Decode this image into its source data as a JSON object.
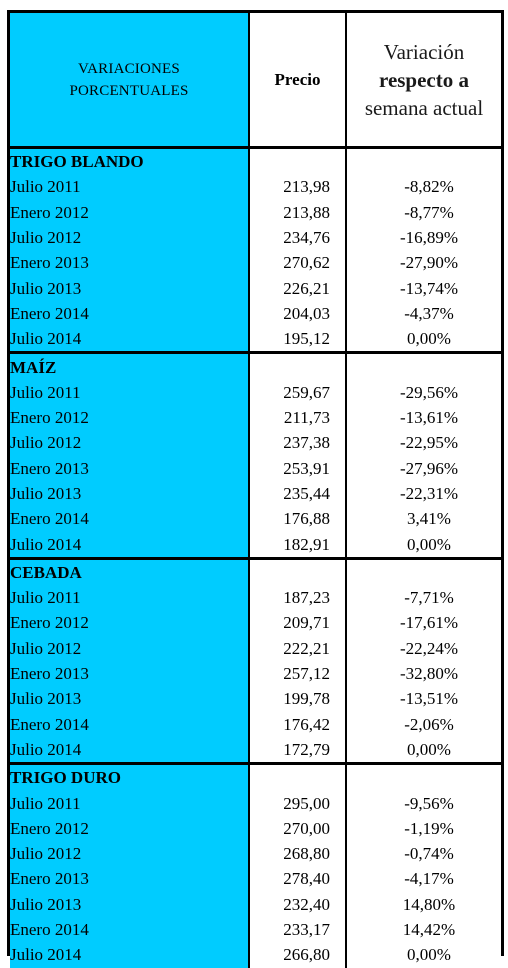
{
  "header": {
    "col1": [
      "VARIACIONES",
      "PORCENTUALES"
    ],
    "col2": "Precio",
    "col3_lines": [
      "Variación",
      "respecto a",
      "semana actual"
    ]
  },
  "groups": [
    {
      "name": "TRIGO BLANDO",
      "rows": [
        {
          "period": "Julio 2011",
          "price": "213,98",
          "variation": "-8,82%"
        },
        {
          "period": "Enero 2012",
          "price": "213,88",
          "variation": "-8,77%"
        },
        {
          "period": "Julio 2012",
          "price": "234,76",
          "variation": "-16,89%"
        },
        {
          "period": "Enero 2013",
          "price": "270,62",
          "variation": "-27,90%"
        },
        {
          "period": "Julio 2013",
          "price": "226,21",
          "variation": "-13,74%"
        },
        {
          "period": "Enero 2014",
          "price": "204,03",
          "variation": "-4,37%"
        },
        {
          "period": "Julio 2014",
          "price": "195,12",
          "variation": "0,00%"
        }
      ]
    },
    {
      "name": "MAÍZ",
      "rows": [
        {
          "period": "Julio 2011",
          "price": "259,67",
          "variation": "-29,56%"
        },
        {
          "period": "Enero 2012",
          "price": "211,73",
          "variation": "-13,61%"
        },
        {
          "period": "Julio 2012",
          "price": "237,38",
          "variation": "-22,95%"
        },
        {
          "period": "Enero 2013",
          "price": "253,91",
          "variation": "-27,96%"
        },
        {
          "period": "Julio 2013",
          "price": "235,44",
          "variation": "-22,31%"
        },
        {
          "period": "Enero 2014",
          "price": "176,88",
          "variation": "3,41%"
        },
        {
          "period": "Julio 2014",
          "price": "182,91",
          "variation": "0,00%"
        }
      ]
    },
    {
      "name": "CEBADA",
      "rows": [
        {
          "period": "Julio 2011",
          "price": "187,23",
          "variation": "-7,71%"
        },
        {
          "period": "Enero 2012",
          "price": "209,71",
          "variation": "-17,61%"
        },
        {
          "period": "Julio 2012",
          "price": "222,21",
          "variation": "-22,24%"
        },
        {
          "period": "Enero 2013",
          "price": "257,12",
          "variation": "-32,80%"
        },
        {
          "period": "Julio 2013",
          "price": "199,78",
          "variation": "-13,51%"
        },
        {
          "period": "Enero 2014",
          "price": "176,42",
          "variation": "-2,06%"
        },
        {
          "period": "Julio 2014",
          "price": "172,79",
          "variation": "0,00%"
        }
      ]
    },
    {
      "name": "TRIGO DURO",
      "rows": [
        {
          "period": "Julio 2011",
          "price": "295,00",
          "variation": "-9,56%"
        },
        {
          "period": "Enero 2012",
          "price": "270,00",
          "variation": "-1,19%"
        },
        {
          "period": "Julio 2012",
          "price": "268,80",
          "variation": "-0,74%"
        },
        {
          "period": "Enero 2013",
          "price": "278,40",
          "variation": "-4,17%"
        },
        {
          "period": "Julio 2013",
          "price": "232,40",
          "variation": "14,80%"
        },
        {
          "period": "Enero 2014",
          "price": "233,17",
          "variation": "14,42%"
        },
        {
          "period": "Julio 2014",
          "price": "266,80",
          "variation": "0,00%"
        }
      ]
    }
  ]
}
